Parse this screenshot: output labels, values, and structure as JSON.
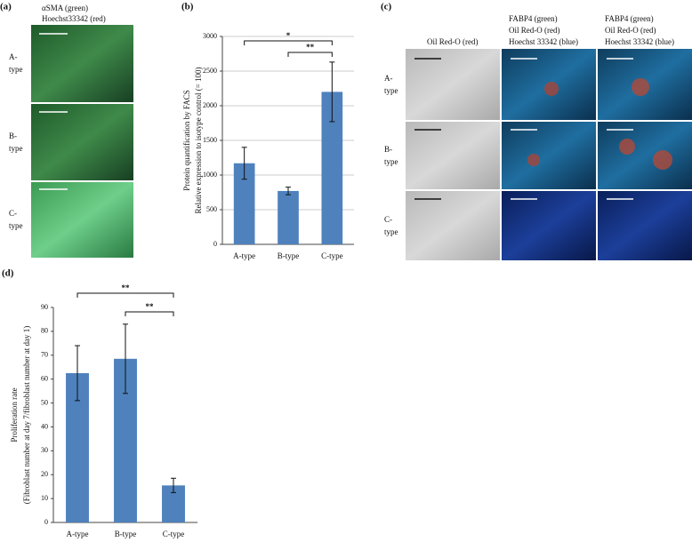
{
  "panel_labels": [
    "(a)",
    "(b)",
    "(c)",
    "(d)"
  ],
  "panel_a": {
    "header": [
      "αSMA (green)",
      "Hoechst33342 (red)"
    ],
    "rows": [
      [
        "A-",
        "type"
      ],
      [
        "B-",
        "type"
      ],
      [
        "C-",
        "type"
      ]
    ]
  },
  "panel_c": {
    "columns": [
      [
        "Oil Red-O (red)"
      ],
      [
        "FABP4 (green)",
        "Oil Red-O (red)",
        "Hoechst 33342 (blue)"
      ],
      [
        "FABP4 (green)",
        "Oil Red-O (red)",
        "Hoechst 33342 (blue)"
      ]
    ],
    "rows": [
      [
        "A-",
        "type"
      ],
      [
        "B-",
        "type"
      ],
      [
        "C-",
        "type"
      ]
    ]
  },
  "chart_data": [
    {
      "type": "bar",
      "ylabel": [
        "Protein quantification by FACS",
        "Relative expression to isotype control (= 100)"
      ],
      "categories": [
        "A-type",
        "B-type",
        "C-type"
      ],
      "values": [
        1170,
        770,
        2200
      ],
      "errors": [
        230,
        55,
        430
      ],
      "color": "#4f81bd",
      "ylim": [
        0,
        3000
      ],
      "yticks": [
        0,
        500,
        1000,
        1500,
        2000,
        2500,
        3000
      ],
      "grid": true,
      "brackets": [
        {
          "label": "*",
          "between": [
            0,
            2
          ]
        },
        {
          "label": "**",
          "between": [
            1,
            2
          ]
        }
      ]
    },
    {
      "type": "bar",
      "ylabel": [
        "Proliferation rate",
        "(Fibroblast number at day 7/fibroblast number at day 1)"
      ],
      "categories": [
        "A-type",
        "B-type",
        "C-type"
      ],
      "values": [
        62.5,
        68.5,
        15.5
      ],
      "errors": [
        11.5,
        14.5,
        3
      ],
      "color": "#4f81bd",
      "ylim": [
        0,
        90
      ],
      "yticks": [
        0,
        10,
        20,
        30,
        40,
        50,
        60,
        70,
        80,
        90
      ],
      "grid": false,
      "brackets": [
        {
          "label": "**",
          "between": [
            0,
            2
          ]
        },
        {
          "label": "**",
          "between": [
            1,
            2
          ]
        }
      ]
    }
  ]
}
